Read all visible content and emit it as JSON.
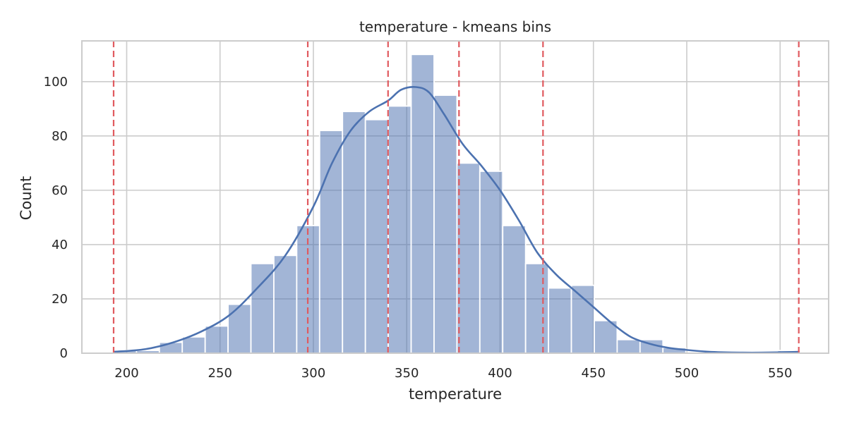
{
  "chart_data": {
    "type": "bar",
    "title": "temperature - kmeans bins",
    "xlabel": "temperature",
    "ylabel": "Count",
    "xlim": [
      176,
      576
    ],
    "ylim": [
      0,
      115
    ],
    "xticks": [
      200,
      250,
      300,
      350,
      400,
      450,
      500,
      550
    ],
    "yticks": [
      0,
      20,
      40,
      60,
      80,
      100
    ],
    "grid": true,
    "histogram": {
      "bin_start": 193,
      "bin_width": 12.26,
      "counts": [
        1,
        1,
        4,
        6,
        10,
        18,
        33,
        36,
        47,
        82,
        89,
        86,
        91,
        110,
        95,
        70,
        67,
        47,
        33,
        24,
        25,
        12,
        5,
        5,
        2,
        0,
        0,
        0,
        0,
        1
      ]
    },
    "kde": {
      "x": [
        193,
        210,
        225,
        240,
        255,
        270,
        285,
        300,
        310,
        320,
        330,
        340,
        347,
        355,
        362,
        370,
        380,
        390,
        400,
        410,
        420,
        430,
        440,
        450,
        460,
        470,
        480,
        490,
        500,
        510,
        520,
        530,
        540,
        550,
        560
      ],
      "y": [
        0.5,
        1.5,
        4,
        8,
        14,
        24,
        36,
        54,
        70,
        82,
        89,
        93,
        97,
        98,
        96,
        88,
        77,
        69,
        60,
        49,
        37,
        29,
        23,
        17,
        11,
        6,
        3.5,
        2,
        1.2,
        0.6,
        0.3,
        0.2,
        0.2,
        0.3,
        0.5
      ]
    },
    "bin_edges": [
      193,
      297,
      340,
      378,
      423,
      560
    ],
    "colors": {
      "bars": "#4c72b0",
      "kde_line": "#4c72b0",
      "bin_edges": "#e05a5f"
    }
  }
}
